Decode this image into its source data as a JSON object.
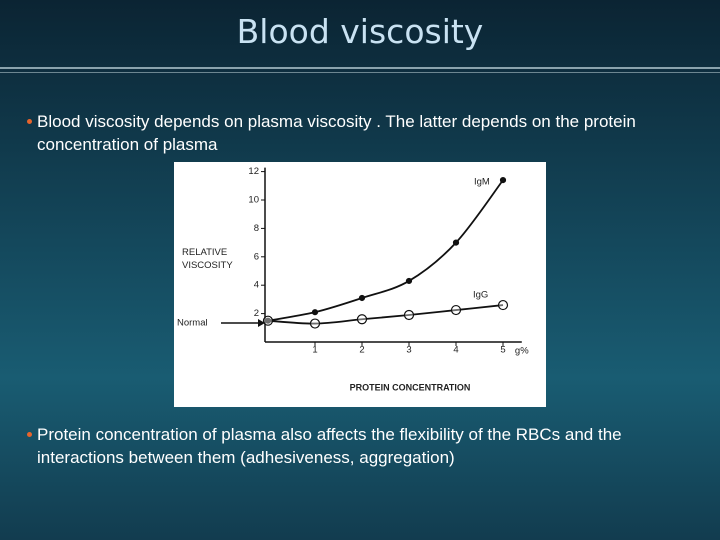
{
  "header": {
    "title": "Blood viscosity"
  },
  "bullets": [
    "Blood viscosity depends on plasma viscosity . The latter depends on the protein concentration of plasma",
    "Protein concentration of plasma also affects the flexibility of the RBCs and the interactions between them (adhesiveness, aggregation)"
  ],
  "chart_data": {
    "type": "line",
    "y_label": "RELATIVE VISCOSITY",
    "x_label": "PROTEIN CONCENTRATION",
    "x_unit": "g%",
    "annotations": [
      "Normal"
    ],
    "x": [
      0,
      1,
      2,
      3,
      4,
      5
    ],
    "series": [
      {
        "name": "IgM",
        "color": "#111111",
        "marker": "filled",
        "values": [
          1.5,
          2.1,
          3.1,
          4.3,
          7.0,
          11.4
        ]
      },
      {
        "name": "IgG",
        "color": "#111111",
        "marker": "open",
        "values": [
          1.5,
          1.3,
          1.6,
          1.9,
          2.25,
          2.6
        ]
      }
    ],
    "xlim": [
      0,
      5.4
    ],
    "ylim": [
      0,
      12
    ],
    "xticks": [
      1,
      2,
      3,
      4,
      5
    ],
    "yticks": [
      2,
      4,
      6,
      8,
      10,
      12
    ]
  }
}
